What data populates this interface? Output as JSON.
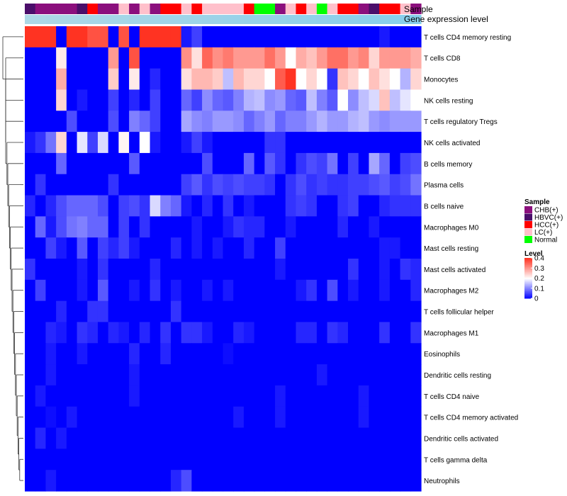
{
  "chart_data": {
    "type": "heatmap",
    "title": "",
    "annotation_labels": [
      "Sample",
      "Gene expression level"
    ],
    "sample_groups": [
      "CHB(+)",
      "HBVC(+)",
      "HCC(+)",
      "LC(+)",
      "Normal"
    ],
    "sample_colors": {
      "CHB(+)": "#8B0F7D",
      "HBVC(+)": "#4B0E6A",
      "HCC(+)": "#FF0000",
      "LC(+)": "#FFC0CB",
      "Normal": "#00FF00"
    },
    "sample_annotation": [
      "HBVC(+)",
      "CHB(+)",
      "CHB(+)",
      "CHB(+)",
      "CHB(+)",
      "HBVC(+)",
      "HCC(+)",
      "CHB(+)",
      "CHB(+)",
      "LC(+)",
      "CHB(+)",
      "LC(+)",
      "CHB(+)",
      "HCC(+)",
      "HCC(+)",
      "LC(+)",
      "HCC(+)",
      "LC(+)",
      "LC(+)",
      "LC(+)",
      "LC(+)",
      "HCC(+)",
      "Normal",
      "Normal",
      "CHB(+)",
      "LC(+)",
      "HCC(+)",
      "LC(+)",
      "Normal",
      "LC(+)",
      "HCC(+)",
      "HCC(+)",
      "CHB(+)",
      "HBVC(+)",
      "HCC(+)",
      "HCC(+)",
      "LC(+)",
      "CHB(+)"
    ],
    "expression_annotation_colors": [
      "#ADD8E6",
      "#87CEEB"
    ],
    "cell_types": [
      "T cells CD4 memory resting",
      "T cells CD8",
      "Monocytes",
      "NK cells resting",
      "T cells regulatory  Tregs",
      "NK cells activated",
      "B cells memory",
      "Plasma cells",
      "B cells naive",
      "Macrophages M0",
      "Mast cells resting",
      "Mast cells activated",
      "Macrophages M2",
      "T cells follicular helper",
      "Macrophages M1",
      "Eosinophils",
      "Dendritic cells resting",
      "T cells CD4 naive",
      "T cells CD4 memory activated",
      "Dendritic cells activated",
      "T cells gamma delta",
      "Neutrophils"
    ],
    "values": [
      [
        0.4,
        0.4,
        0.4,
        0.0,
        0.4,
        0.4,
        0.37,
        0.37,
        0.0,
        0.37,
        0.0,
        0.4,
        0.4,
        0.4,
        0.4,
        0.02,
        0.05,
        0.0,
        0.0,
        0.0,
        0.0,
        0.0,
        0.0,
        0.0,
        0.0,
        0.0,
        0.0,
        0.0,
        0.0,
        0.0,
        0.0,
        0.0,
        0.0,
        0.0,
        0.02,
        0.0,
        0.0,
        0.0
      ],
      [
        0.0,
        0.0,
        0.0,
        0.22,
        0.0,
        0.0,
        0.0,
        0.0,
        0.3,
        0.0,
        0.37,
        0.0,
        0.0,
        0.0,
        0.0,
        0.31,
        0.23,
        0.35,
        0.31,
        0.33,
        0.3,
        0.3,
        0.3,
        0.34,
        0.3,
        0.2,
        0.28,
        0.26,
        0.3,
        0.34,
        0.34,
        0.3,
        0.32,
        0.24,
        0.3,
        0.3,
        0.3,
        0.28
      ],
      [
        0.0,
        0.0,
        0.0,
        0.28,
        0.0,
        0.0,
        0.0,
        0.0,
        0.25,
        0.0,
        0.22,
        0.0,
        0.03,
        0.0,
        0.0,
        0.23,
        0.27,
        0.27,
        0.25,
        0.15,
        0.27,
        0.24,
        0.24,
        0.2,
        0.36,
        0.4,
        0.2,
        0.24,
        0.2,
        0.04,
        0.26,
        0.24,
        0.2,
        0.26,
        0.23,
        0.2,
        0.14,
        0.24
      ],
      [
        0.0,
        0.0,
        0.0,
        0.24,
        0.0,
        0.02,
        0.0,
        0.0,
        0.05,
        0.0,
        0.03,
        0.0,
        0.05,
        0.0,
        0.0,
        0.08,
        0.05,
        0.11,
        0.08,
        0.07,
        0.1,
        0.14,
        0.15,
        0.11,
        0.12,
        0.08,
        0.07,
        0.15,
        0.1,
        0.07,
        0.2,
        0.11,
        0.15,
        0.17,
        0.26,
        0.15,
        0.18,
        0.2
      ],
      [
        0.0,
        0.0,
        0.0,
        0.0,
        0.06,
        0.0,
        0.0,
        0.0,
        0.06,
        0.0,
        0.1,
        0.08,
        0.05,
        0.0,
        0.0,
        0.13,
        0.11,
        0.1,
        0.12,
        0.12,
        0.11,
        0.08,
        0.1,
        0.12,
        0.08,
        0.1,
        0.1,
        0.12,
        0.14,
        0.12,
        0.12,
        0.14,
        0.15,
        0.12,
        0.11,
        0.12,
        0.12,
        0.12
      ],
      [
        0.02,
        0.04,
        0.09,
        0.24,
        0.0,
        0.18,
        0.05,
        0.17,
        0.0,
        0.21,
        0.0,
        0.2,
        0.02,
        0.0,
        0.0,
        0.02,
        0.05,
        0.02,
        0.0,
        0.0,
        0.0,
        0.0,
        0.0,
        0.04,
        0.04,
        0.0,
        0.0,
        0.0,
        0.0,
        0.0,
        0.0,
        0.0,
        0.0,
        0.0,
        0.0,
        0.0,
        0.0,
        0.0
      ],
      [
        0.0,
        0.0,
        0.0,
        0.08,
        0.0,
        0.0,
        0.0,
        0.0,
        0.0,
        0.0,
        0.07,
        0.0,
        0.0,
        0.0,
        0.0,
        0.0,
        0.0,
        0.06,
        0.0,
        0.0,
        0.0,
        0.08,
        0.0,
        0.07,
        0.04,
        0.0,
        0.04,
        0.06,
        0.05,
        0.09,
        0.0,
        0.05,
        0.0,
        0.13,
        0.08,
        0.0,
        0.05,
        0.06
      ],
      [
        0.0,
        0.04,
        0.0,
        0.0,
        0.0,
        0.0,
        0.0,
        0.0,
        0.04,
        0.0,
        0.0,
        0.0,
        0.0,
        0.0,
        0.0,
        0.05,
        0.07,
        0.04,
        0.06,
        0.05,
        0.06,
        0.05,
        0.05,
        0.04,
        0.0,
        0.04,
        0.06,
        0.04,
        0.05,
        0.04,
        0.04,
        0.05,
        0.05,
        0.06,
        0.07,
        0.05,
        0.06,
        0.09
      ],
      [
        0.03,
        0.0,
        0.03,
        0.06,
        0.08,
        0.08,
        0.08,
        0.06,
        0.0,
        0.05,
        0.06,
        0.04,
        0.17,
        0.1,
        0.08,
        0.02,
        0.0,
        0.03,
        0.0,
        0.04,
        0.0,
        0.02,
        0.0,
        0.0,
        0.0,
        0.04,
        0.05,
        0.04,
        0.0,
        0.0,
        0.04,
        0.05,
        0.0,
        0.0,
        0.03,
        0.04,
        0.04,
        0.04
      ],
      [
        0.0,
        0.08,
        0.02,
        0.06,
        0.09,
        0.1,
        0.08,
        0.08,
        0.0,
        0.05,
        0.0,
        0.04,
        0.0,
        0.0,
        0.0,
        0.0,
        0.02,
        0.0,
        0.0,
        0.02,
        0.04,
        0.03,
        0.03,
        0.0,
        0.0,
        0.02,
        0.0,
        0.0,
        0.0,
        0.0,
        0.03,
        0.0,
        0.0,
        0.02,
        0.0,
        0.0,
        0.0,
        0.0
      ],
      [
        0.0,
        0.0,
        0.05,
        0.02,
        0.0,
        0.07,
        0.0,
        0.05,
        0.03,
        0.05,
        0.02,
        0.0,
        0.0,
        0.0,
        0.03,
        0.0,
        0.02,
        0.0,
        0.02,
        0.0,
        0.0,
        0.03,
        0.0,
        0.0,
        0.05,
        0.0,
        0.0,
        0.0,
        0.0,
        0.0,
        0.0,
        0.0,
        0.0,
        0.0,
        0.02,
        0.02,
        0.0,
        0.0
      ],
      [
        0.04,
        0.0,
        0.0,
        0.0,
        0.0,
        0.02,
        0.0,
        0.04,
        0.0,
        0.0,
        0.0,
        0.0,
        0.03,
        0.0,
        0.0,
        0.0,
        0.0,
        0.0,
        0.0,
        0.0,
        0.0,
        0.0,
        0.0,
        0.0,
        0.02,
        0.0,
        0.0,
        0.0,
        0.0,
        0.0,
        0.0,
        0.04,
        0.0,
        0.0,
        0.02,
        0.0,
        0.04,
        0.03
      ],
      [
        0.0,
        0.05,
        0.0,
        0.0,
        0.0,
        0.02,
        0.0,
        0.07,
        0.0,
        0.0,
        0.02,
        0.0,
        0.04,
        0.0,
        0.02,
        0.0,
        0.0,
        0.02,
        0.0,
        0.02,
        0.0,
        0.0,
        0.0,
        0.0,
        0.0,
        0.0,
        0.02,
        0.04,
        0.0,
        0.06,
        0.0,
        0.02,
        0.0,
        0.0,
        0.02,
        0.0,
        0.0,
        0.03
      ],
      [
        0.0,
        0.0,
        0.0,
        0.03,
        0.0,
        0.0,
        0.04,
        0.04,
        0.0,
        0.0,
        0.0,
        0.0,
        0.0,
        0.0,
        0.04,
        0.0,
        0.0,
        0.0,
        0.0,
        0.0,
        0.0,
        0.0,
        0.0,
        0.0,
        0.0,
        0.0,
        0.0,
        0.0,
        0.0,
        0.0,
        0.0,
        0.0,
        0.0,
        0.0,
        0.0,
        0.0,
        0.0,
        0.0
      ],
      [
        0.0,
        0.0,
        0.03,
        0.02,
        0.0,
        0.04,
        0.03,
        0.0,
        0.03,
        0.02,
        0.0,
        0.03,
        0.0,
        0.04,
        0.0,
        0.04,
        0.04,
        0.02,
        0.0,
        0.0,
        0.03,
        0.02,
        0.0,
        0.0,
        0.0,
        0.0,
        0.03,
        0.03,
        0.0,
        0.04,
        0.03,
        0.0,
        0.0,
        0.0,
        0.04,
        0.0,
        0.0,
        0.04
      ],
      [
        0.0,
        0.0,
        0.02,
        0.0,
        0.0,
        0.02,
        0.0,
        0.0,
        0.0,
        0.0,
        0.03,
        0.0,
        0.0,
        0.03,
        0.0,
        0.0,
        0.0,
        0.0,
        0.0,
        0.01,
        0.0,
        0.0,
        0.0,
        0.0,
        0.0,
        0.0,
        0.0,
        0.0,
        0.0,
        0.0,
        0.0,
        0.0,
        0.0,
        0.0,
        0.0,
        0.0,
        0.0,
        0.0
      ],
      [
        0.0,
        0.0,
        0.02,
        0.0,
        0.0,
        0.0,
        0.0,
        0.0,
        0.0,
        0.0,
        0.02,
        0.0,
        0.0,
        0.0,
        0.0,
        0.0,
        0.0,
        0.0,
        0.0,
        0.0,
        0.0,
        0.0,
        0.0,
        0.0,
        0.0,
        0.0,
        0.0,
        0.0,
        0.02,
        0.0,
        0.0,
        0.0,
        0.0,
        0.0,
        0.0,
        0.0,
        0.0,
        0.0
      ],
      [
        0.0,
        0.02,
        0.0,
        0.0,
        0.0,
        0.0,
        0.0,
        0.0,
        0.0,
        0.0,
        0.02,
        0.0,
        0.0,
        0.0,
        0.0,
        0.0,
        0.0,
        0.0,
        0.0,
        0.0,
        0.0,
        0.0,
        0.0,
        0.0,
        0.02,
        0.0,
        0.0,
        0.0,
        0.0,
        0.0,
        0.0,
        0.0,
        0.02,
        0.0,
        0.0,
        0.0,
        0.0,
        0.0
      ],
      [
        0.0,
        0.0,
        0.01,
        0.0,
        0.02,
        0.0,
        0.0,
        0.0,
        0.0,
        0.0,
        0.0,
        0.0,
        0.0,
        0.0,
        0.0,
        0.0,
        0.0,
        0.0,
        0.0,
        0.0,
        0.02,
        0.0,
        0.0,
        0.0,
        0.02,
        0.0,
        0.0,
        0.0,
        0.0,
        0.0,
        0.0,
        0.0,
        0.02,
        0.0,
        0.0,
        0.0,
        0.0,
        0.0
      ],
      [
        0.0,
        0.03,
        0.0,
        0.02,
        0.0,
        0.0,
        0.0,
        0.0,
        0.0,
        0.0,
        0.0,
        0.0,
        0.0,
        0.0,
        0.0,
        0.0,
        0.0,
        0.0,
        0.0,
        0.0,
        0.0,
        0.0,
        0.0,
        0.0,
        0.0,
        0.0,
        0.0,
        0.0,
        0.0,
        0.0,
        0.0,
        0.0,
        0.0,
        0.0,
        0.0,
        0.0,
        0.0,
        0.0
      ],
      [
        0.0,
        0.0,
        0.0,
        0.0,
        0.0,
        0.0,
        0.0,
        0.0,
        0.0,
        0.0,
        0.0,
        0.0,
        0.0,
        0.0,
        0.0,
        0.0,
        0.0,
        0.0,
        0.0,
        0.0,
        0.0,
        0.0,
        0.0,
        0.0,
        0.0,
        0.0,
        0.0,
        0.0,
        0.0,
        0.0,
        0.0,
        0.0,
        0.0,
        0.0,
        0.0,
        0.0,
        0.0,
        0.0
      ],
      [
        0.0,
        0.0,
        0.02,
        0.0,
        0.0,
        0.0,
        0.0,
        0.0,
        0.0,
        0.0,
        0.0,
        0.0,
        0.0,
        0.0,
        0.03,
        0.06,
        0.0,
        0.0,
        0.0,
        0.0,
        0.0,
        0.0,
        0.0,
        0.0,
        0.0,
        0.0,
        0.0,
        0.0,
        0.0,
        0.0,
        0.0,
        0.0,
        0.0,
        0.0,
        0.0,
        0.0,
        0.0,
        0.0
      ]
    ],
    "color_scale": {
      "min": 0,
      "max": 0.4,
      "colors": [
        "#0000FF",
        "#FFFFFF",
        "#FF3322"
      ]
    },
    "legend": {
      "sample_title": "Sample",
      "level_title": "Level",
      "level_ticks": [
        "0.4",
        "0.3",
        "0.2",
        "0.1",
        "0"
      ],
      "level_tick_values": [
        0.4,
        0.3,
        0.2,
        0.1,
        0
      ],
      "placement": "right"
    },
    "row_dendrogram": true
  }
}
